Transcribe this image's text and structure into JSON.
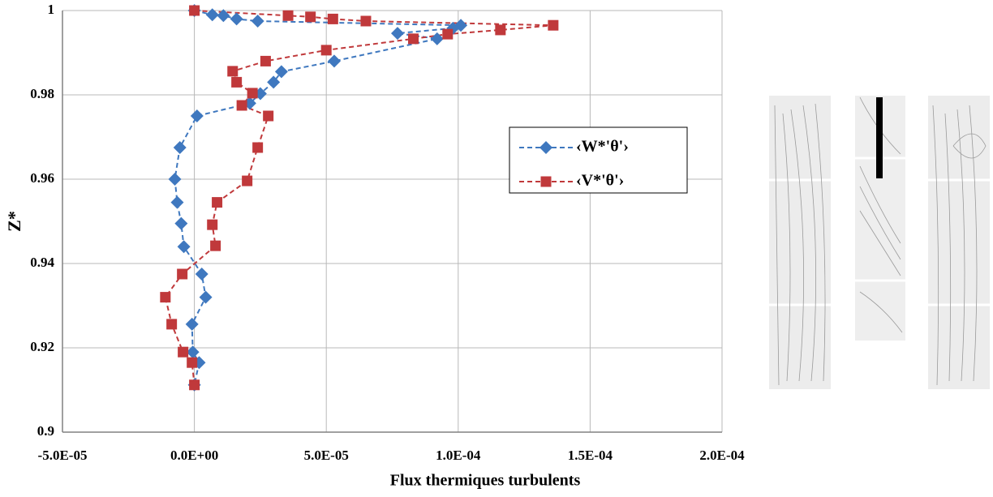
{
  "chart_data": {
    "type": "line",
    "xlabel": "Flux thermiques turbulents",
    "ylabel": "Z*",
    "xlim": [
      -5e-05,
      0.0002
    ],
    "ylim": [
      0.9,
      1
    ],
    "xticks": [
      {
        "value": -5e-05,
        "label": "-5.0E-05"
      },
      {
        "value": 0,
        "label": "0.0E+00"
      },
      {
        "value": 5e-05,
        "label": "5.0E-05"
      },
      {
        "value": 0.0001,
        "label": "1.0E-04"
      },
      {
        "value": 0.00015,
        "label": "1.5E-04"
      },
      {
        "value": 0.0002,
        "label": "2.0E-04"
      }
    ],
    "yticks": [
      0.9,
      0.92,
      0.94,
      0.96,
      0.98,
      1
    ],
    "grid": true,
    "series": [
      {
        "name": "‹W*'θ'›",
        "color": "#3f78bf",
        "x": [
          0,
          6.8e-06,
          1.1e-05,
          1.6e-05,
          2.4e-05,
          0.000101,
          9.8e-05,
          7.7e-05,
          9.2e-05,
          5.3e-05,
          3.3e-05,
          3e-05,
          2.5e-05,
          2.1e-05,
          1e-06,
          -5.5e-06,
          -7.4e-06,
          -6.5e-06,
          -5e-06,
          -4e-06,
          2.8e-06,
          4.3e-06,
          -9e-07,
          -6e-07,
          1.8e-06,
          0
        ],
        "values": [
          1,
          0.999,
          0.9988,
          0.998,
          0.9975,
          0.9965,
          0.9958,
          0.9946,
          0.9933,
          0.988,
          0.9855,
          0.983,
          0.9803,
          0.978,
          0.975,
          0.9675,
          0.96,
          0.9545,
          0.9495,
          0.944,
          0.9375,
          0.932,
          0.9256,
          0.919,
          0.9165,
          0.9112
        ]
      },
      {
        "name": "‹V*'θ'›",
        "color": "#c0393b",
        "x": [
          0,
          3.55e-05,
          4.4e-05,
          5.25e-05,
          6.5e-05,
          0.000136,
          0.000116,
          9.6e-05,
          8.3e-05,
          5e-05,
          2.7e-05,
          1.45e-05,
          1.6e-05,
          2.2e-05,
          1.8e-05,
          2.8e-05,
          2.4e-05,
          2e-05,
          8.6e-06,
          6.8e-06,
          8e-06,
          -4.6e-06,
          -1.1e-05,
          -8.6e-06,
          -4.3e-06,
          -9e-07,
          0
        ],
        "values": [
          1,
          0.9988,
          0.9985,
          0.998,
          0.9975,
          0.9965,
          0.9954,
          0.9944,
          0.9933,
          0.9906,
          0.988,
          0.9856,
          0.983,
          0.9804,
          0.9775,
          0.975,
          0.9675,
          0.9596,
          0.9545,
          0.9492,
          0.9442,
          0.9375,
          0.932,
          0.9256,
          0.919,
          0.9165,
          0.9112
        ]
      }
    ]
  }
}
